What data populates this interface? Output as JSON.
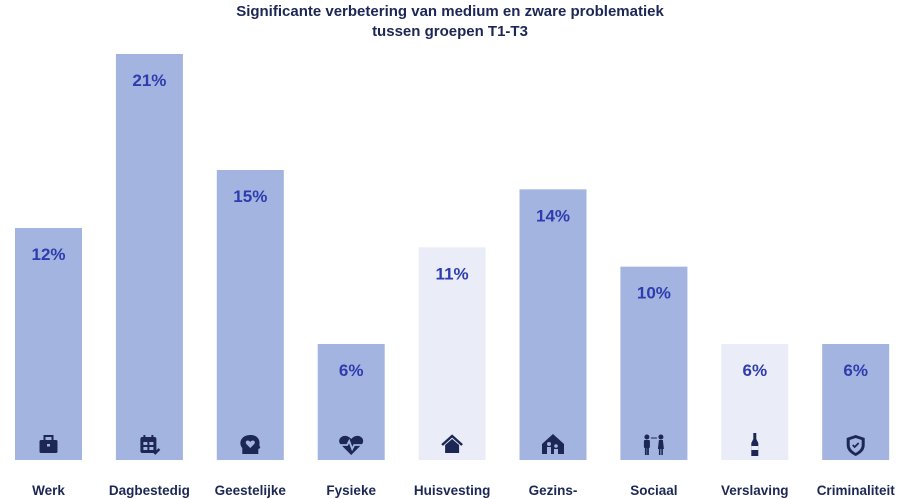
{
  "chart_data": {
    "type": "bar",
    "title": [
      "Significante verbetering van medium en zware problematiek",
      "tussen groepen T1-T3"
    ],
    "categories": [
      "Werk",
      "Dagbestedig",
      "Geestelijke",
      "Fysieke",
      "Huisvesting",
      "Gezins-",
      "Sociaal",
      "Verslaving",
      "Criminaliteit"
    ],
    "values": [
      12,
      21,
      15,
      6,
      11,
      14,
      10,
      6,
      6
    ],
    "data_labels": [
      "12%",
      "21%",
      "15%",
      "6%",
      "11%",
      "14%",
      "10%",
      "6%",
      "6%"
    ],
    "emphasis": [
      "strong",
      "strong",
      "strong",
      "strong",
      "light",
      "strong",
      "strong",
      "light",
      "strong"
    ],
    "icons": [
      "briefcase-icon",
      "calendar-edit-icon",
      "head-heart-icon",
      "heart-pulse-icon",
      "house-icon",
      "family-house-icon",
      "people-distance-icon",
      "bottle-icon",
      "shield-check-icon"
    ],
    "unit": "%",
    "ylim": [
      0,
      21
    ],
    "grid": false,
    "colors": {
      "strong": "#a3b4e0",
      "light": "#eaedf7",
      "label": "#2f3cae",
      "icon": "#1c2755",
      "text": "#1c2755"
    }
  }
}
